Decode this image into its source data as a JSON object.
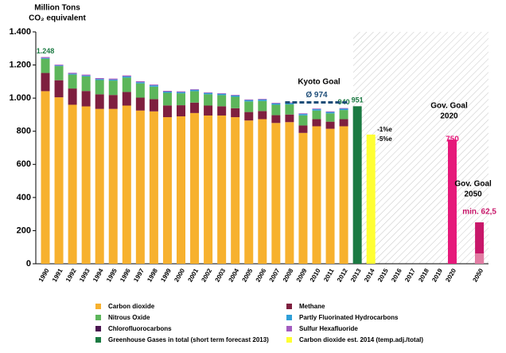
{
  "chart_data": {
    "type": "stacked_bar",
    "title": "Million Tons",
    "subtitle": "CO₂ equivalent",
    "categories": [
      "1990",
      "1991",
      "1992",
      "1993",
      "1994",
      "1995",
      "1996",
      "1997",
      "1998",
      "1999",
      "2000",
      "2001",
      "2002",
      "2003",
      "2004",
      "2005",
      "2006",
      "2007",
      "2008",
      "2009",
      "2010",
      "2011",
      "2012",
      "2013",
      "2014",
      "2015",
      "2016",
      "2017",
      "2018",
      "2019",
      "2020",
      "2050"
    ],
    "ylim": [
      0,
      1400
    ],
    "yticks": [
      0,
      200,
      400,
      600,
      800,
      {
        "value": 1000,
        "label": "1.000"
      },
      {
        "value": 1200,
        "label": "1.200"
      },
      {
        "value": 1400,
        "label": "1.400"
      }
    ],
    "series": [
      {
        "name": "Carbon dioxide",
        "color": "#F7B12E",
        "values": [
          1042,
          1005,
          960,
          950,
          935,
          935,
          955,
          925,
          920,
          885,
          890,
          910,
          895,
          895,
          885,
          865,
          873,
          850,
          855,
          790,
          830,
          815,
          830,
          null,
          null,
          null,
          null,
          null,
          null,
          null,
          null,
          null
        ]
      },
      {
        "name": "Methane",
        "color": "#7E1F3F",
        "values": [
          110,
          103,
          98,
          93,
          88,
          84,
          82,
          78,
          74,
          71,
          67,
          63,
          60,
          56,
          54,
          51,
          49,
          47,
          46,
          45,
          43,
          43,
          43,
          null,
          null,
          null,
          null,
          null,
          null,
          null,
          null,
          null
        ]
      },
      {
        "name": "Nitrous Oxide",
        "color": "#5DB65B",
        "values": [
          86,
          85,
          84,
          88,
          86,
          87,
          87,
          86,
          75,
          76,
          72,
          69,
          68,
          67,
          69,
          64,
          61,
          63,
          61,
          61,
          52,
          50,
          55,
          null,
          null,
          null,
          null,
          null,
          null,
          null,
          null,
          null
        ]
      },
      {
        "name": "Partly Fluorinated Hydrocarbons",
        "color": "#2F9FD8",
        "values": [
          4,
          4,
          5,
          5,
          6,
          6,
          7,
          7,
          8,
          7,
          7,
          8,
          8,
          8,
          8,
          8,
          8,
          8,
          8,
          8,
          8,
          8,
          8,
          null,
          null,
          null,
          null,
          null,
          null,
          null,
          null,
          null
        ]
      },
      {
        "name": "Chlorofluorocarbons",
        "color": "#4A1650",
        "values": [
          null,
          null,
          null,
          null,
          null,
          null,
          null,
          null,
          null,
          null,
          null,
          null,
          null,
          null,
          null,
          null,
          null,
          null,
          null,
          null,
          null,
          null,
          null,
          null,
          null,
          null,
          null,
          null,
          null,
          null,
          null,
          null
        ]
      },
      {
        "name": "Sulfur Hexafluoride",
        "color": "#A35CC0",
        "values": [
          6,
          5,
          6,
          6,
          6,
          6,
          6,
          6,
          5,
          5,
          5,
          4,
          4,
          4,
          4,
          4,
          4,
          4,
          4,
          4,
          4,
          4,
          4,
          null,
          null,
          null,
          null,
          null,
          null,
          null,
          null,
          null
        ]
      },
      {
        "name": "Greenhouse Gases in total (short term forecast 2013)",
        "color": "#1B7A42",
        "values": [
          null,
          null,
          null,
          null,
          null,
          null,
          null,
          null,
          null,
          null,
          null,
          null,
          null,
          null,
          null,
          null,
          null,
          null,
          null,
          null,
          null,
          null,
          null,
          951,
          null,
          null,
          null,
          null,
          null,
          null,
          null,
          null
        ]
      },
      {
        "name": "Carbon dioxide est. 2014 (temp.adj./total)",
        "color": "#FFFF33",
        "values": [
          null,
          null,
          null,
          null,
          null,
          null,
          null,
          null,
          null,
          null,
          null,
          null,
          null,
          null,
          null,
          null,
          null,
          null,
          null,
          null,
          null,
          null,
          null,
          null,
          780,
          null,
          null,
          null,
          null,
          null,
          null,
          null
        ]
      }
    ],
    "annotations": [
      {
        "text": "1.248",
        "category": "1990",
        "value": 1248,
        "color": "#1B7A42"
      },
      {
        "text": "940",
        "category": "2012",
        "value": 940,
        "color": "#1B7A42"
      },
      {
        "text": "951",
        "category": "2013",
        "value": 951,
        "color": "#1B7A42"
      }
    ],
    "kyoto": {
      "title": "Kyoto Goal",
      "label": "Ø 974",
      "value": 974,
      "from": "2008",
      "to": "2012",
      "color": "#1F4E79"
    },
    "estimate_notes": [
      "-1%e",
      "-5%e"
    ],
    "goals": [
      {
        "title_lines": [
          "Gov. Goal",
          "2020"
        ],
        "category": "2020",
        "value": 750,
        "value_label": "750",
        "color": "#E6197A"
      },
      {
        "title_lines": [
          "Gov. Goal",
          "2050"
        ],
        "category": "2050",
        "value": 250,
        "min": 62.5,
        "value_label": "min. 62,5",
        "color": "#C8176A",
        "min_color": "#E27CA3"
      }
    ]
  }
}
